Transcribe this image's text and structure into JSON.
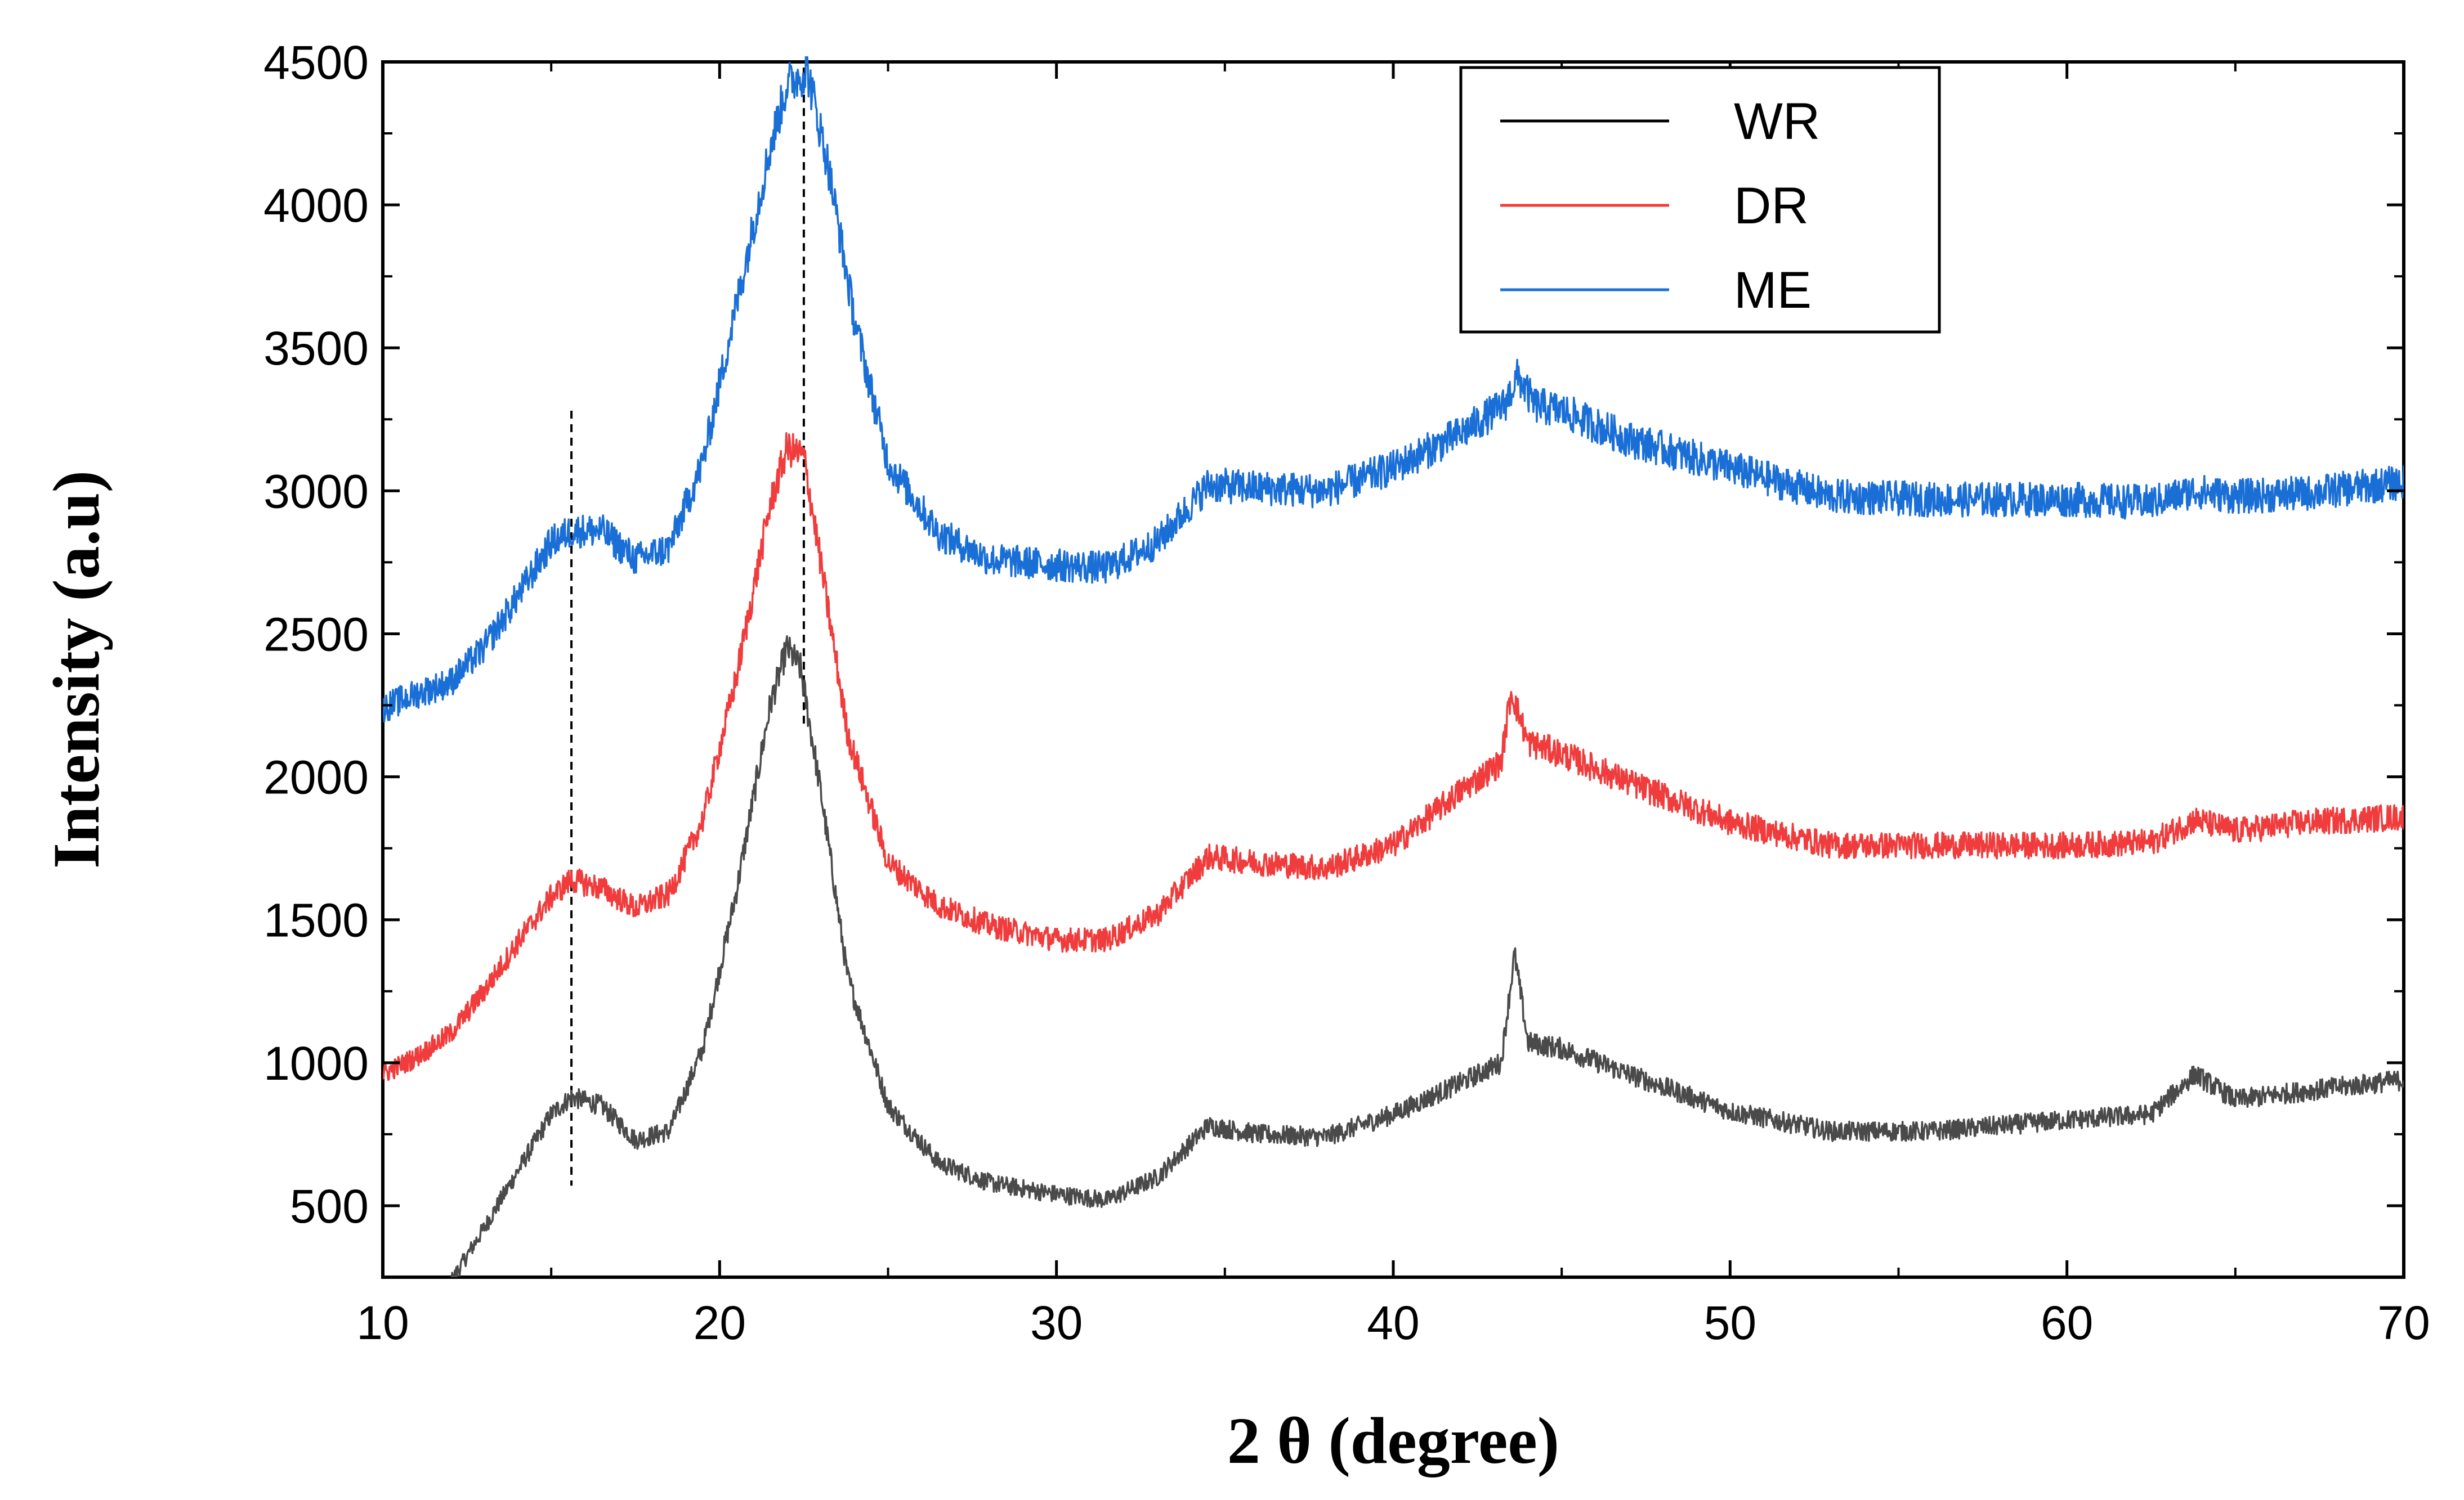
{
  "chart_data": {
    "type": "line",
    "xlabel": "2 θ (degree)",
    "ylabel": "Intensity (a.u)",
    "xlim": [
      10,
      70
    ],
    "ylim": [
      250,
      4500
    ],
    "xticks": [
      10,
      20,
      30,
      40,
      50,
      60,
      70
    ],
    "yticks": [
      500,
      1000,
      1500,
      2000,
      2500,
      3000,
      3500,
      4000,
      4500
    ],
    "legend_position": "top-right",
    "grid": false,
    "reference_lines_x": [
      15.6,
      22.5
    ],
    "series": [
      {
        "name": "WR",
        "color": "#4a4a4a",
        "legend_color": "#000000",
        "x": [
          10,
          11,
          12,
          13,
          14,
          15,
          15.6,
          16.5,
          17.5,
          18.5,
          19.5,
          20.5,
          21.5,
          22.0,
          22.4,
          23.0,
          23.8,
          25,
          26.5,
          28,
          30,
          31.5,
          33,
          34.5,
          36,
          38,
          40,
          42,
          43.2,
          43.6,
          44.0,
          45,
          47,
          50,
          53,
          56,
          60,
          62.5,
          63.8,
          65,
          67,
          70
        ],
        "y": [
          120,
          150,
          230,
          420,
          620,
          820,
          880,
          850,
          730,
          760,
          1050,
          1600,
          2250,
          2450,
          2380,
          1950,
          1300,
          850,
          650,
          580,
          540,
          520,
          600,
          780,
          750,
          740,
          820,
          930,
          1000,
          1380,
          1070,
          1050,
          960,
          830,
          760,
          760,
          800,
          820,
          960,
          870,
          900,
          940
        ]
      },
      {
        "name": "DR",
        "color": "#f03c3c",
        "legend_color": "#f03c3c",
        "x": [
          10,
          11,
          12,
          13,
          14,
          15,
          15.6,
          16.5,
          17.5,
          18.5,
          19.5,
          20.5,
          21.5,
          22.0,
          22.5,
          23.0,
          23.8,
          25,
          26.5,
          28,
          30,
          31.5,
          33,
          34.5,
          36,
          38,
          40,
          42,
          43.2,
          43.5,
          44.0,
          45,
          47,
          50,
          53,
          56,
          60,
          62.5,
          63.8,
          65,
          67,
          70
        ],
        "y": [
          960,
          1020,
          1100,
          1250,
          1420,
          1580,
          1640,
          1610,
          1540,
          1590,
          1850,
          2350,
          2950,
          3150,
          3120,
          2750,
          2150,
          1700,
          1550,
          1480,
          1430,
          1430,
          1520,
          1720,
          1700,
          1680,
          1760,
          1950,
          2050,
          2300,
          2120,
          2080,
          1980,
          1840,
          1760,
          1760,
          1760,
          1770,
          1850,
          1810,
          1840,
          1860
        ]
      },
      {
        "name": "ME",
        "color": "#1a6fd6",
        "legend_color": "#1a6fd6",
        "x": [
          10,
          11,
          12,
          13,
          14,
          15,
          15.6,
          16.5,
          17.5,
          18.5,
          19.5,
          20.5,
          21.5,
          22.0,
          22.6,
          23.2,
          24.0,
          25,
          26.5,
          28,
          30,
          31.5,
          33,
          34.5,
          36,
          38,
          40,
          42,
          43.3,
          43.7,
          44.2,
          45,
          47,
          50,
          53,
          56,
          60,
          62.5,
          63.8,
          65,
          67,
          70
        ],
        "y": [
          2240,
          2290,
          2330,
          2450,
          2630,
          2820,
          2860,
          2860,
          2760,
          2800,
          3100,
          3650,
          4200,
          4420,
          4470,
          4150,
          3600,
          3100,
          2850,
          2760,
          2740,
          2730,
          2820,
          3020,
          3010,
          3000,
          3080,
          3200,
          3300,
          3400,
          3300,
          3280,
          3180,
          3080,
          2980,
          2970,
          2970,
          2960,
          3000,
          2980,
          2990,
          3030
        ]
      }
    ]
  }
}
